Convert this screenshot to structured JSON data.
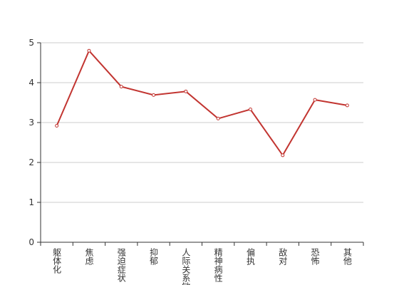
{
  "chart_data": {
    "type": "line",
    "categories": [
      "躯体化",
      "焦虑",
      "强迫症状",
      "抑郁",
      "人际关系敏感",
      "精神病性",
      "偏执",
      "敌对",
      "恐怖",
      "其他"
    ],
    "series": [
      {
        "color": "#c23531",
        "values": [
          2.92,
          4.8,
          3.9,
          3.69,
          3.78,
          3.1,
          3.33,
          2.18,
          3.57,
          3.43
        ]
      }
    ],
    "ylim": [
      0,
      5
    ],
    "yticks": [
      0,
      1,
      2,
      3,
      4,
      5
    ],
    "grid": true
  }
}
